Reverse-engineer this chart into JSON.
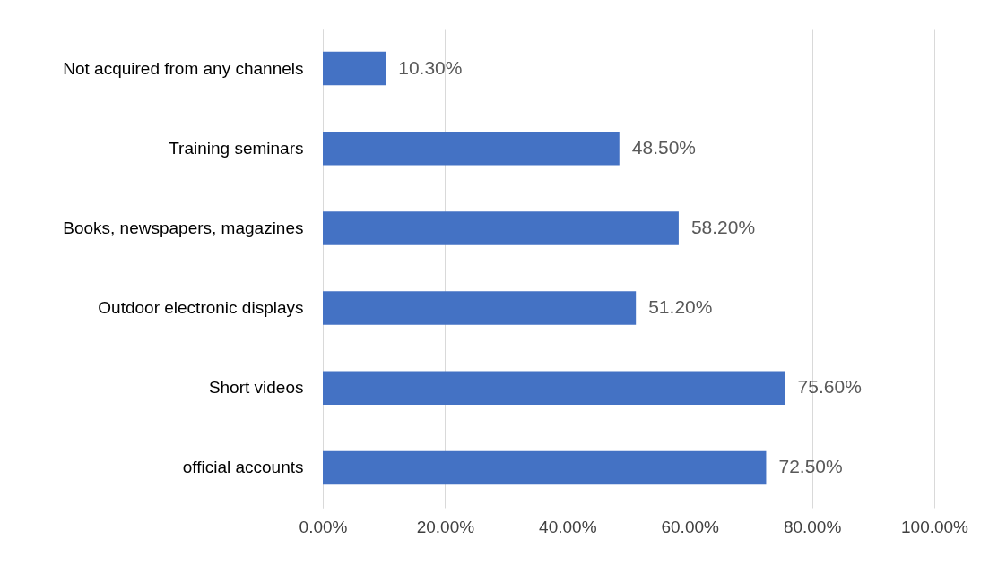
{
  "chart_data": {
    "type": "bar",
    "orientation": "horizontal",
    "categories": [
      "Not acquired from any channels",
      "Training seminars",
      "Books, newspapers, magazines",
      "Outdoor electronic displays",
      "Short videos",
      "official accounts"
    ],
    "values": [
      10.3,
      48.5,
      58.2,
      51.2,
      75.6,
      72.5
    ],
    "value_labels": [
      "10.30%",
      "48.50%",
      "58.20%",
      "51.20%",
      "75.60%",
      "72.50%"
    ],
    "color": "#4472c4",
    "xlim": [
      0,
      100
    ],
    "xticks": [
      {
        "value": 0,
        "label": "0.00%"
      },
      {
        "value": 20,
        "label": "20.00%"
      },
      {
        "value": 40,
        "label": "40.00%"
      },
      {
        "value": 60,
        "label": "60.00%"
      },
      {
        "value": 80,
        "label": "80.00%"
      },
      {
        "value": 100,
        "label": "100.00%"
      }
    ],
    "grid": "x"
  }
}
